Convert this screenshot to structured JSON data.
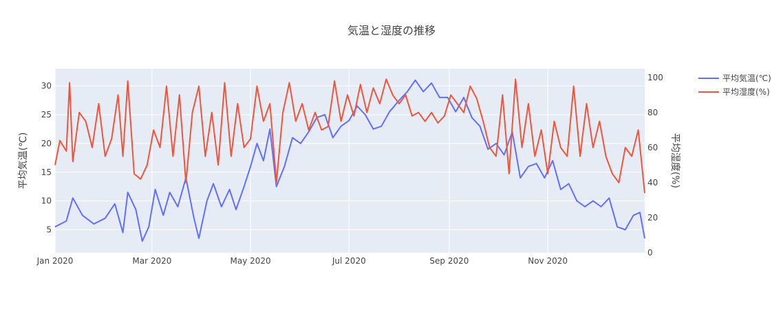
{
  "chart_data": {
    "type": "line",
    "title": "気温と湿度の推移",
    "x": {
      "range": [
        "2020-01-01",
        "2020-12-31"
      ],
      "tick_labels": [
        "Jan 2020",
        "Mar 2020",
        "May 2020",
        "Jul 2020",
        "Sep 2020",
        "Nov 2020"
      ],
      "tick_dates": [
        "2020-01-01",
        "2020-03-01",
        "2020-05-01",
        "2020-07-01",
        "2020-09-01",
        "2020-11-01"
      ]
    },
    "y_left": {
      "title": "平均気温(℃)",
      "range": [
        1,
        33
      ],
      "tick_values": [
        5,
        10,
        15,
        20,
        25,
        30
      ]
    },
    "y_right": {
      "title": "平均湿度(%)",
      "range": [
        0,
        105
      ],
      "tick_values": [
        0,
        20,
        40,
        60,
        80,
        100
      ]
    },
    "legend": "top-right",
    "grid": true,
    "series": [
      {
        "name": "平均気温(℃)",
        "axis": "left",
        "color": "#636efa",
        "points": [
          [
            "2020-01-01",
            5.5
          ],
          [
            "2020-01-08",
            6.5
          ],
          [
            "2020-01-12",
            10.5
          ],
          [
            "2020-01-18",
            7.5
          ],
          [
            "2020-01-25",
            6
          ],
          [
            "2020-02-01",
            7
          ],
          [
            "2020-02-07",
            9.5
          ],
          [
            "2020-02-12",
            4.5
          ],
          [
            "2020-02-15",
            11.5
          ],
          [
            "2020-02-20",
            8.5
          ],
          [
            "2020-02-24",
            3
          ],
          [
            "2020-02-28",
            5.5
          ],
          [
            "2020-03-03",
            12
          ],
          [
            "2020-03-08",
            7.5
          ],
          [
            "2020-03-12",
            11.5
          ],
          [
            "2020-03-17",
            9
          ],
          [
            "2020-03-22",
            14
          ],
          [
            "2020-03-27",
            7
          ],
          [
            "2020-03-30",
            3.5
          ],
          [
            "2020-04-04",
            10
          ],
          [
            "2020-04-08",
            13
          ],
          [
            "2020-04-13",
            9
          ],
          [
            "2020-04-18",
            12
          ],
          [
            "2020-04-22",
            8.5
          ],
          [
            "2020-04-27",
            12.5
          ],
          [
            "2020-05-01",
            16
          ],
          [
            "2020-05-05",
            20
          ],
          [
            "2020-05-09",
            17
          ],
          [
            "2020-05-13",
            22.5
          ],
          [
            "2020-05-17",
            12.5
          ],
          [
            "2020-05-22",
            16
          ],
          [
            "2020-05-27",
            21
          ],
          [
            "2020-06-01",
            20
          ],
          [
            "2020-06-06",
            22
          ],
          [
            "2020-06-11",
            24.5
          ],
          [
            "2020-06-16",
            25
          ],
          [
            "2020-06-21",
            21
          ],
          [
            "2020-06-26",
            23
          ],
          [
            "2020-07-01",
            24
          ],
          [
            "2020-07-06",
            26.5
          ],
          [
            "2020-07-11",
            25
          ],
          [
            "2020-07-16",
            22.5
          ],
          [
            "2020-07-21",
            23
          ],
          [
            "2020-07-26",
            25.5
          ],
          [
            "2020-08-01",
            27.5
          ],
          [
            "2020-08-06",
            29
          ],
          [
            "2020-08-11",
            31
          ],
          [
            "2020-08-16",
            29
          ],
          [
            "2020-08-21",
            30.5
          ],
          [
            "2020-08-26",
            28
          ],
          [
            "2020-08-31",
            28
          ],
          [
            "2020-09-05",
            25.5
          ],
          [
            "2020-09-10",
            28
          ],
          [
            "2020-09-15",
            24.5
          ],
          [
            "2020-09-20",
            23
          ],
          [
            "2020-09-25",
            19
          ],
          [
            "2020-09-30",
            20
          ],
          [
            "2020-10-05",
            18
          ],
          [
            "2020-10-10",
            22
          ],
          [
            "2020-10-15",
            14
          ],
          [
            "2020-10-20",
            16
          ],
          [
            "2020-10-25",
            16.5
          ],
          [
            "2020-10-30",
            14
          ],
          [
            "2020-11-04",
            17
          ],
          [
            "2020-11-09",
            12
          ],
          [
            "2020-11-14",
            13
          ],
          [
            "2020-11-19",
            10
          ],
          [
            "2020-11-24",
            9
          ],
          [
            "2020-11-29",
            10
          ],
          [
            "2020-12-04",
            9
          ],
          [
            "2020-12-09",
            10.5
          ],
          [
            "2020-12-14",
            5.5
          ],
          [
            "2020-12-19",
            5
          ],
          [
            "2020-12-24",
            7.5
          ],
          [
            "2020-12-28",
            8
          ],
          [
            "2020-12-31",
            3.5
          ]
        ]
      },
      {
        "name": "平均湿度(%)",
        "axis": "right",
        "color": "#ef553b",
        "points": [
          [
            "2020-01-01",
            50
          ],
          [
            "2020-01-04",
            64
          ],
          [
            "2020-01-08",
            58
          ],
          [
            "2020-01-10",
            97
          ],
          [
            "2020-01-12",
            52
          ],
          [
            "2020-01-16",
            80
          ],
          [
            "2020-01-20",
            75
          ],
          [
            "2020-01-24",
            60
          ],
          [
            "2020-01-28",
            85
          ],
          [
            "2020-02-01",
            55
          ],
          [
            "2020-02-05",
            65
          ],
          [
            "2020-02-09",
            90
          ],
          [
            "2020-02-12",
            55
          ],
          [
            "2020-02-15",
            98
          ],
          [
            "2020-02-19",
            45
          ],
          [
            "2020-02-23",
            42
          ],
          [
            "2020-02-27",
            50
          ],
          [
            "2020-03-02",
            70
          ],
          [
            "2020-03-06",
            60
          ],
          [
            "2020-03-10",
            95
          ],
          [
            "2020-03-14",
            55
          ],
          [
            "2020-03-18",
            90
          ],
          [
            "2020-03-22",
            40
          ],
          [
            "2020-03-26",
            80
          ],
          [
            "2020-03-30",
            95
          ],
          [
            "2020-04-03",
            55
          ],
          [
            "2020-04-07",
            80
          ],
          [
            "2020-04-11",
            50
          ],
          [
            "2020-04-15",
            97
          ],
          [
            "2020-04-19",
            55
          ],
          [
            "2020-04-23",
            85
          ],
          [
            "2020-04-27",
            60
          ],
          [
            "2020-05-01",
            65
          ],
          [
            "2020-05-05",
            95
          ],
          [
            "2020-05-09",
            75
          ],
          [
            "2020-05-13",
            85
          ],
          [
            "2020-05-17",
            40
          ],
          [
            "2020-05-21",
            80
          ],
          [
            "2020-05-25",
            97
          ],
          [
            "2020-05-29",
            75
          ],
          [
            "2020-06-02",
            85
          ],
          [
            "2020-06-06",
            70
          ],
          [
            "2020-06-10",
            80
          ],
          [
            "2020-06-14",
            70
          ],
          [
            "2020-06-18",
            72
          ],
          [
            "2020-06-22",
            98
          ],
          [
            "2020-06-26",
            75
          ],
          [
            "2020-06-30",
            90
          ],
          [
            "2020-07-04",
            78
          ],
          [
            "2020-07-08",
            96
          ],
          [
            "2020-07-12",
            80
          ],
          [
            "2020-07-16",
            94
          ],
          [
            "2020-07-20",
            85
          ],
          [
            "2020-07-24",
            99
          ],
          [
            "2020-07-28",
            90
          ],
          [
            "2020-08-01",
            85
          ],
          [
            "2020-08-05",
            90
          ],
          [
            "2020-08-09",
            78
          ],
          [
            "2020-08-13",
            80
          ],
          [
            "2020-08-17",
            75
          ],
          [
            "2020-08-21",
            80
          ],
          [
            "2020-08-25",
            74
          ],
          [
            "2020-08-29",
            78
          ],
          [
            "2020-09-02",
            90
          ],
          [
            "2020-09-06",
            85
          ],
          [
            "2020-09-10",
            80
          ],
          [
            "2020-09-14",
            95
          ],
          [
            "2020-09-18",
            88
          ],
          [
            "2020-09-22",
            75
          ],
          [
            "2020-09-26",
            60
          ],
          [
            "2020-09-30",
            55
          ],
          [
            "2020-10-04",
            90
          ],
          [
            "2020-10-08",
            45
          ],
          [
            "2020-10-12",
            99
          ],
          [
            "2020-10-16",
            60
          ],
          [
            "2020-10-20",
            85
          ],
          [
            "2020-10-24",
            55
          ],
          [
            "2020-10-28",
            70
          ],
          [
            "2020-11-01",
            45
          ],
          [
            "2020-11-05",
            75
          ],
          [
            "2020-11-09",
            60
          ],
          [
            "2020-11-13",
            55
          ],
          [
            "2020-11-17",
            95
          ],
          [
            "2020-11-21",
            55
          ],
          [
            "2020-11-25",
            85
          ],
          [
            "2020-11-29",
            60
          ],
          [
            "2020-12-03",
            75
          ],
          [
            "2020-12-07",
            55
          ],
          [
            "2020-12-11",
            45
          ],
          [
            "2020-12-15",
            40
          ],
          [
            "2020-12-19",
            60
          ],
          [
            "2020-12-23",
            55
          ],
          [
            "2020-12-27",
            70
          ],
          [
            "2020-12-31",
            34
          ]
        ]
      }
    ]
  }
}
